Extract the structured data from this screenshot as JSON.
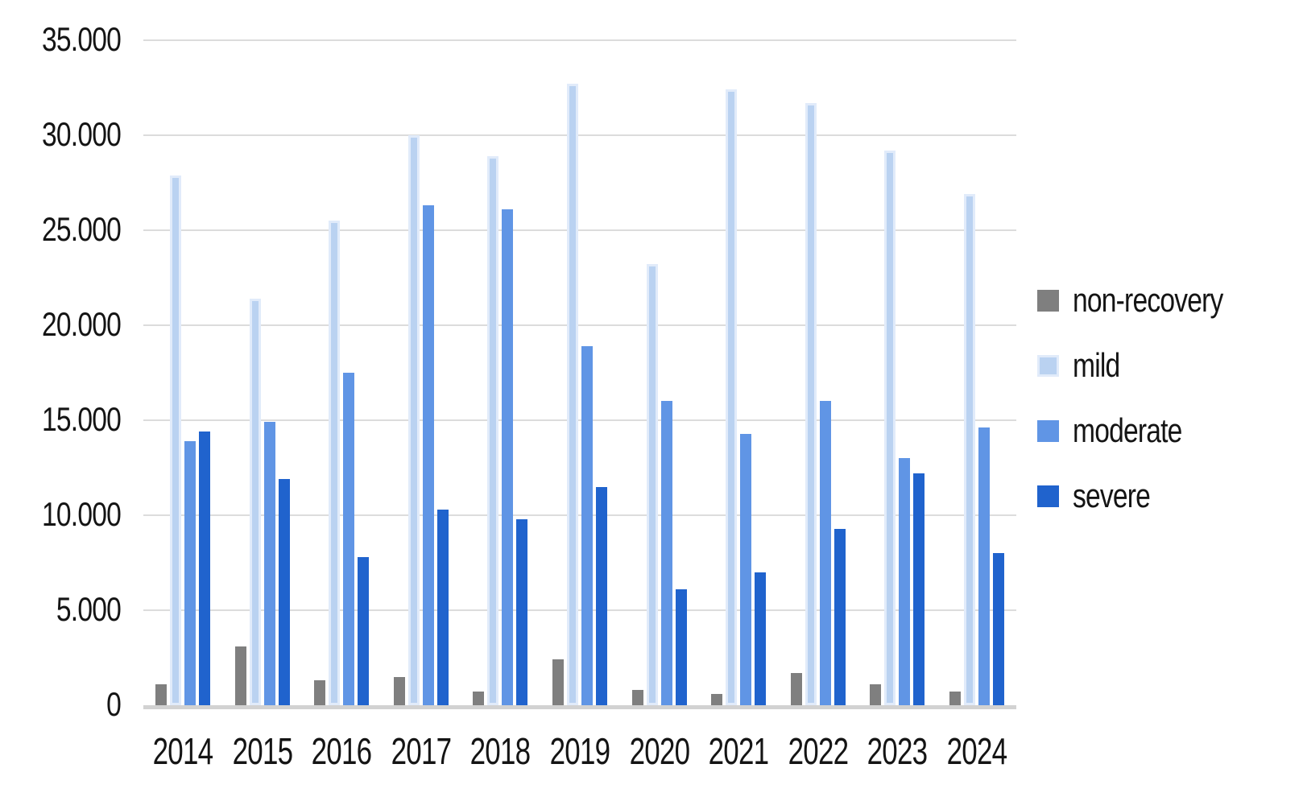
{
  "chart_data": {
    "type": "bar",
    "title": "",
    "xlabel": "",
    "ylabel": "",
    "categories": [
      "2014",
      "2015",
      "2016",
      "2017",
      "2018",
      "2019",
      "2020",
      "2021",
      "2022",
      "2023",
      "2024"
    ],
    "series": [
      {
        "name": "non-recovery",
        "color": "#7f7f7f",
        "values": [
          1100,
          3100,
          1300,
          1500,
          700,
          2400,
          800,
          600,
          1700,
          1100,
          700
        ]
      },
      {
        "name": "mild",
        "color": "#bad2f1",
        "border_color": "#e1ebfa",
        "values": [
          27900,
          21400,
          25500,
          30000,
          28900,
          32700,
          23200,
          32400,
          31700,
          29200,
          26900
        ]
      },
      {
        "name": "moderate",
        "color": "#6095e5",
        "values": [
          13900,
          14900,
          17500,
          26300,
          26100,
          18900,
          16000,
          14300,
          16000,
          13000,
          14600
        ]
      },
      {
        "name": "severe",
        "color": "#2063cd",
        "values": [
          14400,
          11900,
          7800,
          10300,
          9800,
          11500,
          6100,
          7000,
          9300,
          12200,
          8000
        ]
      }
    ],
    "ylim": [
      0,
      35000
    ],
    "ytick_step": 5000,
    "ytick_labels": [
      "0",
      "5.000",
      "10.000",
      "15.000",
      "20.000",
      "25.000",
      "30.000",
      "35.000"
    ],
    "grid": true,
    "legend_position": "right",
    "gridline_color": "#dcdcdc",
    "axis_line_color": "#d2d2d2"
  }
}
